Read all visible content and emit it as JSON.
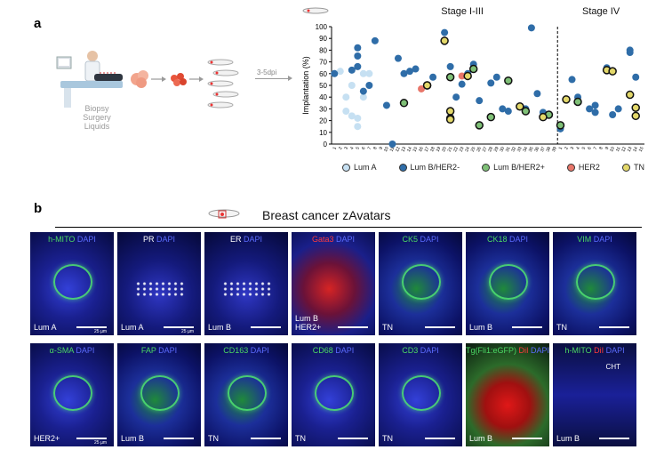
{
  "panel_a": {
    "letter": "a",
    "flow_labels": [
      "Biopsy",
      "Surgery",
      "Liquids"
    ],
    "arrow_label": "3-5dpi"
  },
  "chart_data": {
    "type": "scatter",
    "title": "",
    "ylabel": "Implantation (%)",
    "ylim": [
      0,
      100
    ],
    "yticks": [
      0,
      10,
      20,
      30,
      40,
      50,
      60,
      70,
      80,
      90,
      100
    ],
    "stage_labels": [
      "Stage I-III",
      "Stage IV"
    ],
    "grid": false,
    "legend_position": "bottom",
    "colors": {
      "Lum A": "#c6e0f2",
      "Lum B/HER2-": "#2f6da8",
      "Lum B/HER2+": "#7fc077",
      "HER2": "#e8766a",
      "TN": "#e3d86a"
    },
    "series": [
      {
        "name": "Lum A",
        "points": [
          [
            1,
            60
          ],
          [
            2,
            62
          ],
          [
            3,
            28
          ],
          [
            3,
            40
          ],
          [
            4,
            50
          ],
          [
            4,
            24
          ],
          [
            5,
            22
          ],
          [
            5,
            15
          ],
          [
            6,
            40
          ],
          [
            6,
            60
          ],
          [
            7,
            60
          ]
        ]
      },
      {
        "name": "Lum B/HER2-",
        "points": [
          [
            1,
            60
          ],
          [
            4,
            63
          ],
          [
            5,
            82
          ],
          [
            5,
            75
          ],
          [
            5,
            66
          ],
          [
            6,
            45
          ],
          [
            7,
            50
          ],
          [
            8,
            88
          ],
          [
            10,
            33
          ],
          [
            11,
            0
          ],
          [
            12,
            73
          ],
          [
            13,
            60
          ],
          [
            14,
            62
          ],
          [
            15,
            64
          ],
          [
            17,
            50
          ],
          [
            18,
            57
          ],
          [
            20,
            95
          ],
          [
            21,
            66
          ],
          [
            22,
            40
          ],
          [
            23,
            51
          ],
          [
            24,
            60
          ],
          [
            25,
            68
          ],
          [
            26,
            37
          ],
          [
            28,
            52
          ],
          [
            29,
            57
          ],
          [
            30,
            30
          ],
          [
            31,
            28
          ],
          [
            33,
            32
          ],
          [
            34,
            30
          ],
          [
            35,
            99
          ],
          [
            36,
            43
          ],
          [
            37,
            27
          ],
          [
            38,
            25
          ],
          [
            40,
            13
          ],
          [
            42,
            55
          ],
          [
            43,
            40
          ],
          [
            45,
            30
          ],
          [
            46,
            27
          ],
          [
            46,
            33
          ],
          [
            48,
            65
          ],
          [
            49,
            25
          ],
          [
            50,
            30
          ],
          [
            52,
            78
          ],
          [
            52,
            80
          ],
          [
            53,
            57
          ]
        ]
      },
      {
        "name": "Lum B/HER2+",
        "points": [
          [
            13,
            35
          ],
          [
            17,
            50
          ],
          [
            21,
            57
          ],
          [
            25,
            64
          ],
          [
            26,
            16
          ],
          [
            28,
            23
          ],
          [
            31,
            54
          ],
          [
            34,
            28
          ],
          [
            38,
            25
          ],
          [
            40,
            16
          ],
          [
            43,
            36
          ]
        ]
      },
      {
        "name": "HER2",
        "points": [
          [
            16,
            47
          ],
          [
            23,
            58
          ]
        ]
      },
      {
        "name": "TN",
        "points": [
          [
            17,
            50
          ],
          [
            20,
            88
          ],
          [
            21,
            28
          ],
          [
            21,
            22
          ],
          [
            21,
            21
          ],
          [
            24,
            58
          ],
          [
            33,
            32
          ],
          [
            37,
            23
          ],
          [
            41,
            38
          ],
          [
            48,
            63
          ],
          [
            49,
            62
          ],
          [
            52,
            42
          ],
          [
            53,
            31
          ],
          [
            53,
            24
          ]
        ]
      }
    ],
    "x_tick_labels": [
      "1",
      "2",
      "3",
      "4",
      "5",
      "6",
      "7",
      "8",
      "9",
      "10",
      "11",
      "12",
      "13",
      "14",
      "15",
      "16",
      "17",
      "18",
      "19",
      "20",
      "21",
      "22",
      "23",
      "24",
      "25",
      "26",
      "27",
      "28",
      "29",
      "30",
      "31",
      "32",
      "33",
      "34",
      "35",
      "36",
      "37",
      "38",
      "39",
      "1",
      "2",
      "3",
      "4",
      "5",
      "6",
      "7",
      "8",
      "9",
      "10",
      "11",
      "12",
      "13",
      "14",
      "15"
    ],
    "stage_split_after": 39
  },
  "panel_b": {
    "letter": "b",
    "title": "Breast cancer zAvatars",
    "tiles": [
      {
        "marker": "h-MITO",
        "mc": "g",
        "sub": [
          "Lum A"
        ],
        "scale": "25 µm",
        "bg": "blue"
      },
      {
        "marker": "PR",
        "mc": "w",
        "sub": [
          "Lum A"
        ],
        "scale": "25 µm",
        "bg": "dots"
      },
      {
        "marker": "ER",
        "mc": "w",
        "sub": [
          "Lum B"
        ],
        "scale": "",
        "bg": "dots"
      },
      {
        "marker": "Gata3",
        "mc": "r",
        "sub": [
          "Lum B",
          "HER2+"
        ],
        "scale": "",
        "bg": "red"
      },
      {
        "marker": "CK5",
        "mc": "g",
        "sub": [
          "TN"
        ],
        "scale": "",
        "bg": "green"
      },
      {
        "marker": "CK18",
        "mc": "g",
        "sub": [
          "Lum B"
        ],
        "scale": "",
        "bg": "green"
      },
      {
        "marker": "VIM",
        "mc": "g",
        "sub": [
          "TN"
        ],
        "scale": "",
        "bg": "green"
      },
      {
        "marker": "α-SMA",
        "mc": "g",
        "sub": [
          "HER2+"
        ],
        "scale": "25 µm",
        "bg": "blue"
      },
      {
        "marker": "FAP",
        "mc": "g",
        "sub": [
          "Lum B"
        ],
        "scale": "",
        "bg": "green"
      },
      {
        "marker": "CD163",
        "mc": "g",
        "sub": [
          "TN"
        ],
        "scale": "",
        "bg": "green"
      },
      {
        "marker": "CD68",
        "mc": "g",
        "sub": [
          "TN"
        ],
        "scale": "",
        "bg": "blue"
      },
      {
        "marker": "CD3",
        "mc": "g",
        "sub": [
          "TN"
        ],
        "scale": "",
        "bg": "blue"
      },
      {
        "marker": "Tg(Fli1:eGFP)",
        "marker2": "DiI",
        "mc": "g",
        "sub": [
          "Lum B"
        ],
        "scale": "",
        "bg": "redgreen"
      },
      {
        "marker": "h-MITO",
        "marker2": "DiI",
        "mc": "g",
        "sub": [
          "Lum B"
        ],
        "scale": "",
        "bg": "dark",
        "extra": "CHT"
      }
    ],
    "dapi_label": "DAPI"
  }
}
